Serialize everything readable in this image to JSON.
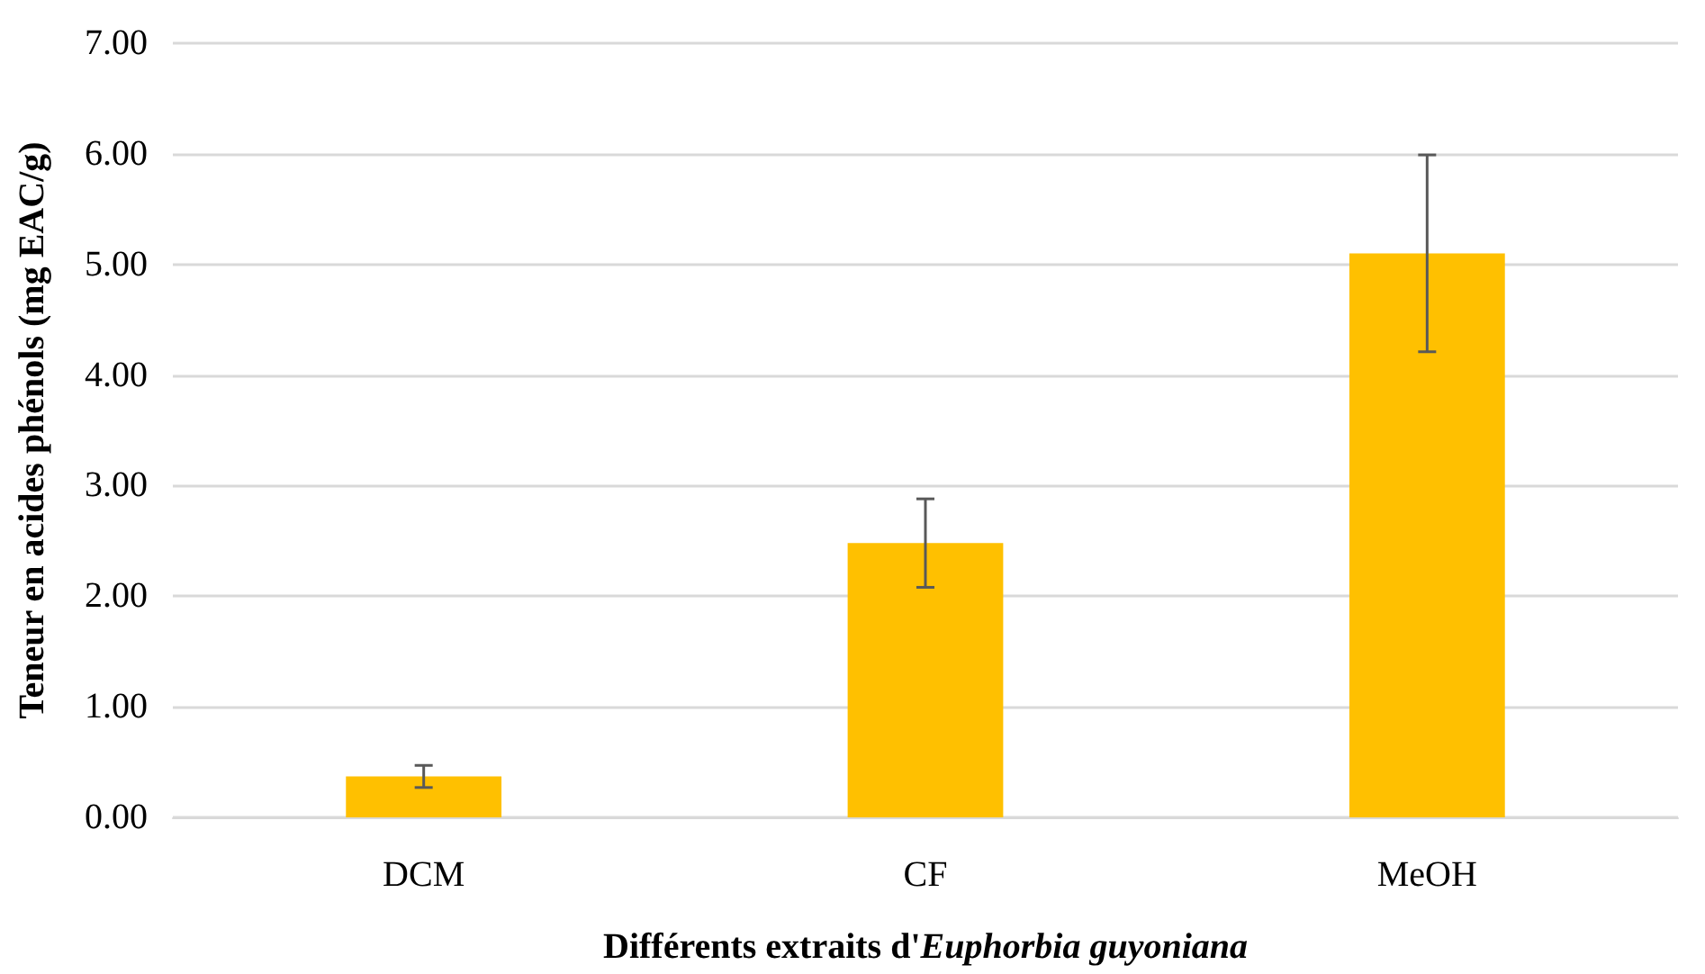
{
  "chart_data": {
    "type": "bar",
    "xlabel": "Différents extraits d'Euphorbia guyoniana",
    "ylabel": "Teneur en acides phénols (mg EAC/g)",
    "categories": [
      "DCM",
      "CF",
      "MeOH"
    ],
    "values": [
      0.37,
      2.48,
      5.1
    ],
    "errors": [
      0.1,
      0.4,
      0.89
    ],
    "color": "#ffc000",
    "ylim": [
      0,
      7
    ],
    "yticks": [
      {
        "value": 0,
        "label": "0.00"
      },
      {
        "value": 1,
        "label": "1.00"
      },
      {
        "value": 2,
        "label": "2.00"
      },
      {
        "value": 3,
        "label": "3.00"
      },
      {
        "value": 4,
        "label": "4.00"
      },
      {
        "value": 5,
        "label": "5.00"
      },
      {
        "value": 6,
        "label": "6.00"
      },
      {
        "value": 7,
        "label": "7.00"
      }
    ],
    "grid": "y"
  }
}
